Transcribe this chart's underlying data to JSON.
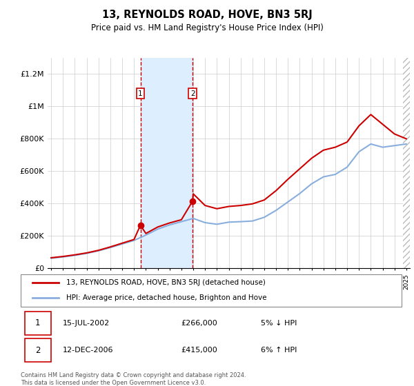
{
  "title": "13, REYNOLDS ROAD, HOVE, BN3 5RJ",
  "subtitle": "Price paid vs. HM Land Registry's House Price Index (HPI)",
  "legend_line1": "13, REYNOLDS ROAD, HOVE, BN3 5RJ (detached house)",
  "legend_line2": "HPI: Average price, detached house, Brighton and Hove",
  "sale1_date": "15-JUL-2002",
  "sale1_price": "£266,000",
  "sale1_hpi": "5% ↓ HPI",
  "sale2_date": "12-DEC-2006",
  "sale2_price": "£415,000",
  "sale2_hpi": "6% ↑ HPI",
  "footer": "Contains HM Land Registry data © Crown copyright and database right 2024.\nThis data is licensed under the Open Government Licence v3.0.",
  "red_color": "#cc0000",
  "blue_color": "#88aedd",
  "shade_color": "#ddeeff",
  "vline_color": "#cc0000",
  "ylim": [
    0,
    1300000
  ],
  "yticks": [
    0,
    200000,
    400000,
    600000,
    800000,
    1000000,
    1200000
  ],
  "ytick_labels": [
    "£0",
    "£200K",
    "£400K",
    "£600K",
    "£800K",
    "£1M",
    "£1.2M"
  ],
  "x_start_year": 1995,
  "x_end_year": 2025,
  "sale1_year": 2002.54,
  "sale2_year": 2006.95,
  "sale1_price_val": 266000,
  "sale2_price_val": 415000,
  "hpi_years": [
    1995,
    1996,
    1997,
    1998,
    1999,
    2000,
    2001,
    2002,
    2003,
    2004,
    2005,
    2006,
    2007,
    2008,
    2009,
    2010,
    2011,
    2012,
    2013,
    2014,
    2015,
    2016,
    2017,
    2018,
    2019,
    2020,
    2021,
    2022,
    2023,
    2024,
    2025
  ],
  "hpi_values": [
    62000,
    70000,
    80000,
    92000,
    108000,
    128000,
    150000,
    172000,
    205000,
    242000,
    268000,
    288000,
    308000,
    282000,
    272000,
    285000,
    288000,
    292000,
    315000,
    358000,
    410000,
    462000,
    522000,
    565000,
    580000,
    625000,
    720000,
    768000,
    748000,
    758000,
    768000
  ],
  "red_years": [
    1995,
    1996,
    1997,
    1998,
    1999,
    2000,
    2001,
    2002,
    2002.54,
    2003,
    2004,
    2005,
    2006,
    2006.95,
    2007,
    2008,
    2009,
    2010,
    2011,
    2012,
    2013,
    2014,
    2015,
    2016,
    2017,
    2018,
    2019,
    2020,
    2021,
    2022,
    2023,
    2024,
    2025
  ],
  "red_values": [
    65000,
    73000,
    83000,
    95000,
    111000,
    132000,
    155000,
    178000,
    266000,
    215000,
    255000,
    280000,
    300000,
    415000,
    460000,
    388000,
    368000,
    382000,
    388000,
    398000,
    422000,
    480000,
    550000,
    615000,
    680000,
    730000,
    748000,
    780000,
    880000,
    950000,
    890000,
    830000,
    800000
  ]
}
